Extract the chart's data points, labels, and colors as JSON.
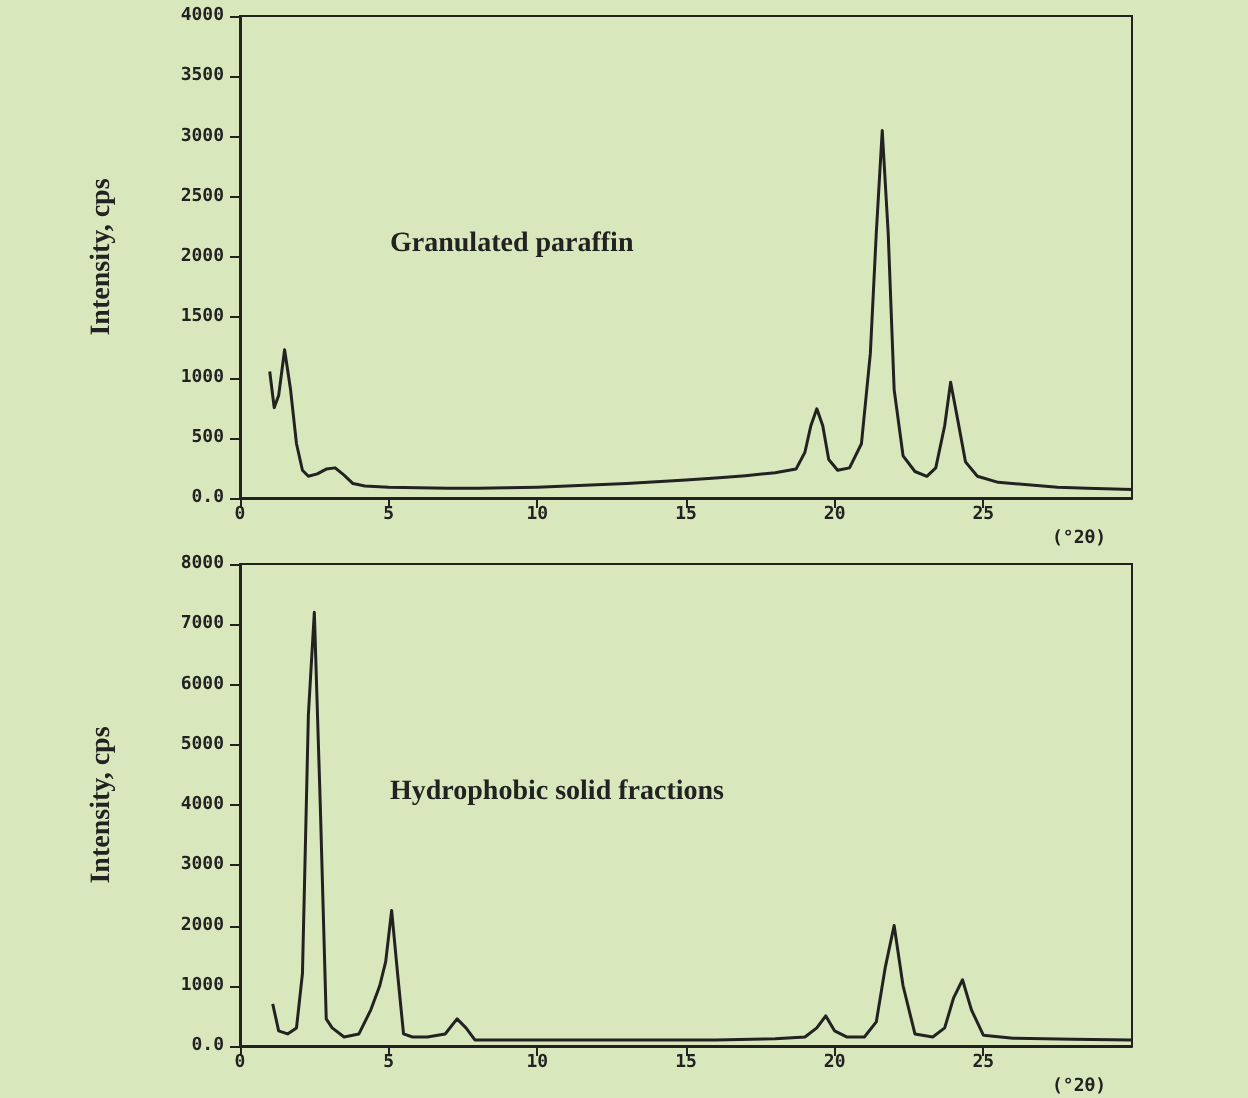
{
  "chart_data": [
    {
      "type": "line",
      "ylabel": "Intensity, cps",
      "xlabel": "(°2θ)",
      "annotations": [
        "Granulated paraffin"
      ],
      "xlim": [
        0,
        30
      ],
      "xticks": [
        0,
        5,
        10,
        15,
        20,
        25
      ],
      "ylim": [
        0,
        4000
      ],
      "yticks": [
        {
          "value": 0,
          "label": "0.0"
        },
        500,
        1000,
        1500,
        2000,
        2500,
        3000,
        3500,
        4000
      ],
      "grid": false,
      "marker": "none",
      "series": [
        {
          "color": "#222222",
          "x": [
            1,
            1.15,
            1.3,
            1.5,
            1.7,
            1.9,
            2.1,
            2.3,
            2.6,
            2.9,
            3.2,
            3.5,
            3.8,
            4.2,
            5,
            6,
            7,
            8,
            9,
            10,
            11,
            12,
            13,
            14,
            15,
            16,
            17,
            18,
            18.7,
            19,
            19.2,
            19.4,
            19.6,
            19.8,
            20.1,
            20.5,
            20.9,
            21.2,
            21.4,
            21.6,
            21.8,
            22,
            22.3,
            22.7,
            23.1,
            23.4,
            23.7,
            23.9,
            24.1,
            24.4,
            24.8,
            25.5,
            26.5,
            27.5,
            28.5,
            30
          ],
          "values": [
            1050,
            750,
            850,
            1230,
            900,
            450,
            230,
            180,
            200,
            240,
            250,
            190,
            120,
            100,
            90,
            85,
            80,
            80,
            85,
            90,
            100,
            110,
            120,
            135,
            150,
            165,
            185,
            210,
            240,
            380,
            600,
            740,
            600,
            320,
            230,
            250,
            450,
            1200,
            2200,
            3050,
            2200,
            900,
            350,
            220,
            180,
            250,
            600,
            960,
            700,
            300,
            180,
            130,
            110,
            90,
            80,
            70
          ]
        }
      ]
    },
    {
      "type": "line",
      "ylabel": "Intensity, cps",
      "xlabel": "(°2θ)",
      "annotations": [
        "Hydrophobic solid fractions"
      ],
      "xlim": [
        0,
        30
      ],
      "xticks": [
        0,
        5,
        10,
        15,
        20,
        25
      ],
      "ylim": [
        0,
        8000
      ],
      "yticks": [
        {
          "value": 0,
          "label": "0.0"
        },
        1000,
        2000,
        3000,
        4000,
        5000,
        6000,
        7000,
        8000
      ],
      "grid": false,
      "marker": "none",
      "series": [
        {
          "color": "#222222",
          "x": [
            1.1,
            1.3,
            1.6,
            1.9,
            2.1,
            2.3,
            2.5,
            2.7,
            2.9,
            3.1,
            3.5,
            4,
            4.4,
            4.7,
            4.9,
            5.1,
            5.3,
            5.5,
            5.8,
            6.3,
            6.9,
            7.3,
            7.6,
            7.9,
            8.3,
            9,
            10,
            12,
            14,
            16,
            18,
            19,
            19.4,
            19.7,
            20,
            20.4,
            21,
            21.4,
            21.7,
            22,
            22.3,
            22.7,
            23.3,
            23.7,
            24,
            24.3,
            24.6,
            25,
            26,
            28,
            30
          ],
          "values": [
            700,
            250,
            200,
            300,
            1200,
            5500,
            7200,
            4000,
            450,
            300,
            150,
            200,
            600,
            1000,
            1400,
            2250,
            1200,
            200,
            150,
            150,
            200,
            450,
            300,
            100,
            100,
            100,
            100,
            100,
            100,
            100,
            120,
            150,
            300,
            500,
            250,
            150,
            150,
            400,
            1300,
            2000,
            1000,
            200,
            150,
            300,
            800,
            1100,
            600,
            180,
            130,
            110,
            100
          ]
        }
      ]
    }
  ]
}
